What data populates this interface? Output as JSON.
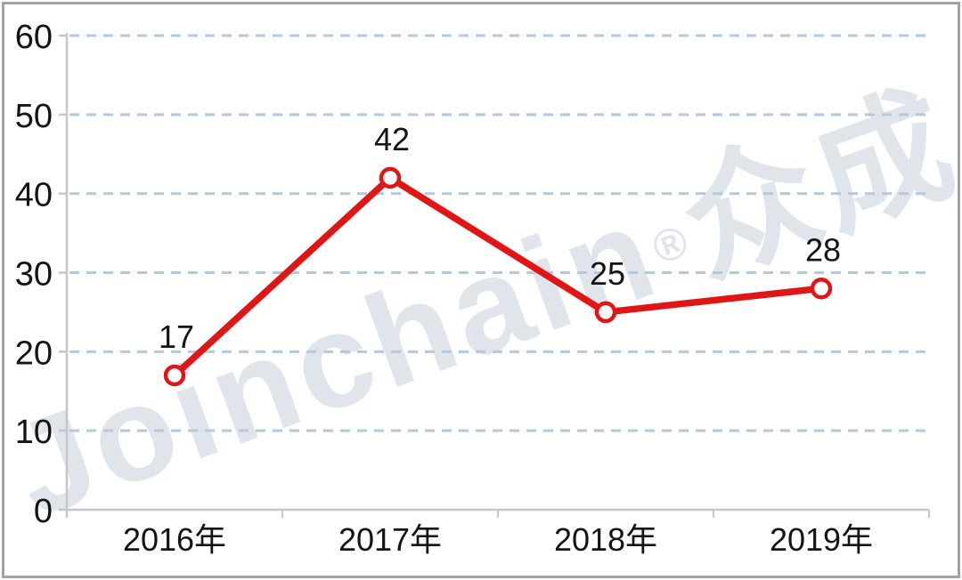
{
  "watermark": {
    "latin": "Joinchain",
    "reg": "®",
    "cjk": "众成",
    "color": "#e0e4eb"
  },
  "chart_data": {
    "type": "line",
    "categories": [
      "2016年",
      "2017年",
      "2018年",
      "2019年"
    ],
    "values": [
      17,
      42,
      25,
      28
    ],
    "data_labels": [
      17,
      42,
      25,
      28
    ],
    "title": "",
    "xlabel": "",
    "ylabel": "",
    "ylim": [
      0,
      60
    ],
    "yticks": [
      0,
      10,
      20,
      30,
      40,
      50,
      60
    ],
    "grid": "horizontal-dashed",
    "legend": "none",
    "colors": {
      "line": "#e01616",
      "marker_fill": "#ffffff",
      "gridline": "#b4c9dc",
      "axis": "#c6c6c8",
      "text": "#141414"
    }
  }
}
